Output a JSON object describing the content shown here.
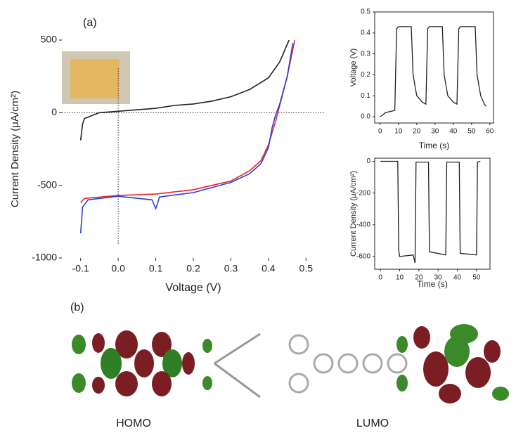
{
  "panel_labels": [
    "(a)",
    "(b)"
  ],
  "molecule_labels": [
    "HOMO",
    "LUMO"
  ],
  "chart_data": [
    {
      "type": "line",
      "xlabel": "Voltage (V)",
      "ylabel": "Current Density (μA/cm²)",
      "xlim": [
        -0.15,
        0.55
      ],
      "ylim": [
        -1000,
        500
      ],
      "xticks": [
        -0.1,
        {
          "value": 0,
          "label": "0.0"
        },
        0.1,
        0.2,
        0.3,
        0.4,
        0.5
      ],
      "yticks": [
        500,
        0,
        -500,
        -1000
      ],
      "hlines": [
        0
      ],
      "vlines": [
        0
      ],
      "frame": false,
      "series": [
        {
          "color": "#222222",
          "x": [
            -0.1,
            -0.095,
            -0.09,
            -0.05,
            0,
            0.05,
            0.1,
            0.15,
            0.2,
            0.25,
            0.3,
            0.35,
            0.4,
            0.43,
            0.455
          ],
          "values": [
            -190,
            -80,
            -40,
            0,
            10,
            20,
            30,
            50,
            60,
            80,
            110,
            160,
            240,
            350,
            500
          ]
        },
        {
          "color": "#e8242a",
          "x": [
            -0.1,
            -0.09,
            0,
            0.1,
            0.2,
            0.25,
            0.3,
            0.35,
            0.38,
            0.4,
            0.42,
            0.43,
            0.45,
            0.47
          ],
          "values": [
            -620,
            -590,
            -570,
            -560,
            -530,
            -500,
            -470,
            -400,
            -330,
            -220,
            -50,
            50,
            250,
            500
          ]
        },
        {
          "color": "#2b3fd6",
          "x": [
            -0.1,
            -0.095,
            -0.08,
            0,
            0.09,
            0.1,
            0.11,
            0.2,
            0.3,
            0.35,
            0.38,
            0.4,
            0.41,
            0.42,
            0.43,
            0.45,
            0.465
          ],
          "values": [
            -830,
            -650,
            -600,
            -575,
            -600,
            -660,
            -580,
            -550,
            -480,
            -420,
            -350,
            -240,
            -100,
            -10,
            60,
            250,
            480
          ]
        }
      ]
    },
    {
      "type": "line",
      "xlabel": "Time (s)",
      "ylabel": "Voltage (V)",
      "xlim": [
        -3,
        62
      ],
      "ylim": [
        -0.03,
        0.5
      ],
      "xticks": [
        0,
        10,
        20,
        30,
        40,
        50,
        60
      ],
      "yticks": [
        {
          "value": 0,
          "label": "0.0"
        },
        0.1,
        0.2,
        0.3,
        0.4,
        0.5
      ],
      "frame": true,
      "series": [
        {
          "color": "#222222",
          "x": [
            0,
            3,
            8,
            9,
            10,
            17,
            18,
            20,
            23,
            25,
            26,
            27,
            34,
            35,
            37,
            40,
            42,
            43,
            44,
            52,
            53,
            55,
            57,
            58
          ],
          "values": [
            0,
            0.02,
            0.03,
            0.42,
            0.43,
            0.43,
            0.2,
            0.1,
            0.07,
            0.06,
            0.42,
            0.43,
            0.43,
            0.2,
            0.1,
            0.07,
            0.06,
            0.42,
            0.43,
            0.43,
            0.2,
            0.1,
            0.06,
            0.05
          ]
        }
      ]
    },
    {
      "type": "line",
      "xlabel": "Time (s)",
      "ylabel": "Current Density (μA/cm²)",
      "xlim": [
        -3,
        57
      ],
      "ylim": [
        -680,
        20
      ],
      "xticks": [
        0,
        10,
        20,
        30,
        40,
        50
      ],
      "yticks": [
        0,
        -200,
        -400,
        -600
      ],
      "frame": true,
      "series": [
        {
          "color": "#222222",
          "x": [
            0,
            9,
            9.5,
            10,
            17,
            18,
            18.5,
            25,
            25.5,
            34,
            34.5,
            41,
            41.5,
            50,
            50.5,
            52
          ],
          "values": [
            0,
            0,
            -560,
            -600,
            -590,
            -640,
            -5,
            -5,
            -570,
            -590,
            -5,
            -5,
            -580,
            -590,
            -5,
            0
          ]
        }
      ]
    }
  ]
}
